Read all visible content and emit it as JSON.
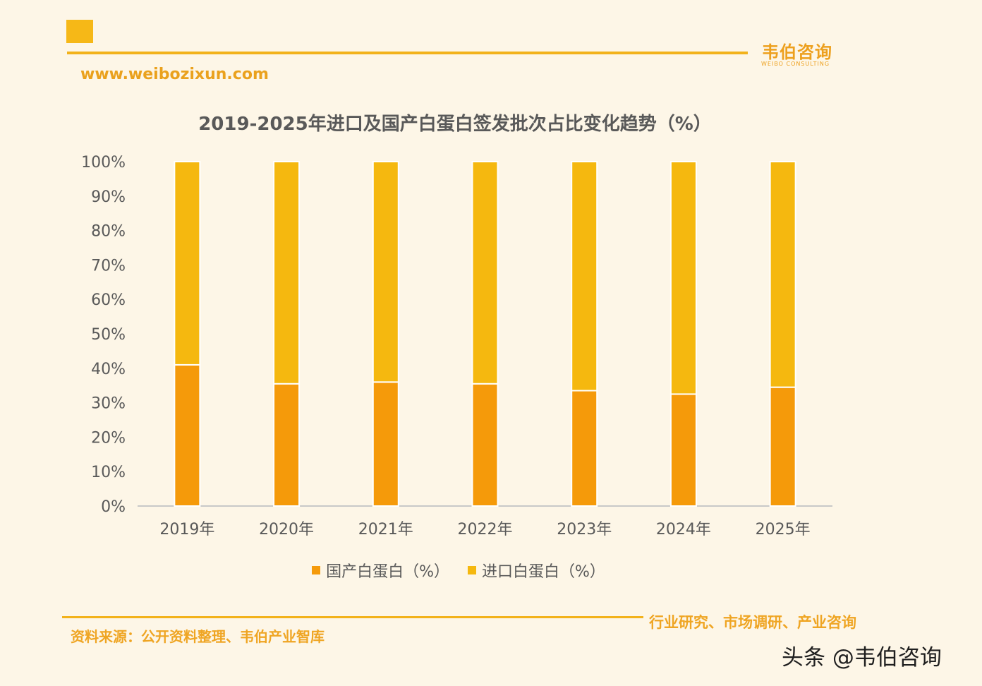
{
  "header": {
    "brand_cn": "韦伯咨询",
    "brand_en": "WEIBO CONSULTING",
    "url": "www.weibozixun.com"
  },
  "colors": {
    "domestic": "#f59a0a",
    "imported": "#f5b80f",
    "accent": "#f2b21b"
  },
  "chart_data": {
    "type": "bar",
    "stacked": true,
    "title": "2019-2025年进口及国产白蛋白签发批次占比变化趋势（%）",
    "categories": [
      "2019年",
      "2020年",
      "2021年",
      "2022年",
      "2023年",
      "2024年",
      "2025年"
    ],
    "series": [
      {
        "name": "国产白蛋白（%）",
        "values": [
          41,
          35.5,
          36,
          35.5,
          33.5,
          32.5,
          34.5
        ]
      },
      {
        "name": "进口白蛋白（%）",
        "values": [
          59,
          64.5,
          64,
          64.5,
          66.5,
          67.5,
          65.5
        ]
      }
    ],
    "y_ticks": [
      "0%",
      "10%",
      "20%",
      "30%",
      "40%",
      "50%",
      "60%",
      "70%",
      "80%",
      "90%",
      "100%"
    ],
    "ylim": [
      0,
      100
    ],
    "grid": false,
    "legend": "bottom-center",
    "xlabel": "",
    "ylabel": ""
  },
  "footer": {
    "source": "资料来源：公开资料整理、韦伯产业智库",
    "slogan": "行业研究、市场调研、产业咨询",
    "watermark": "头条 @韦伯咨询"
  }
}
